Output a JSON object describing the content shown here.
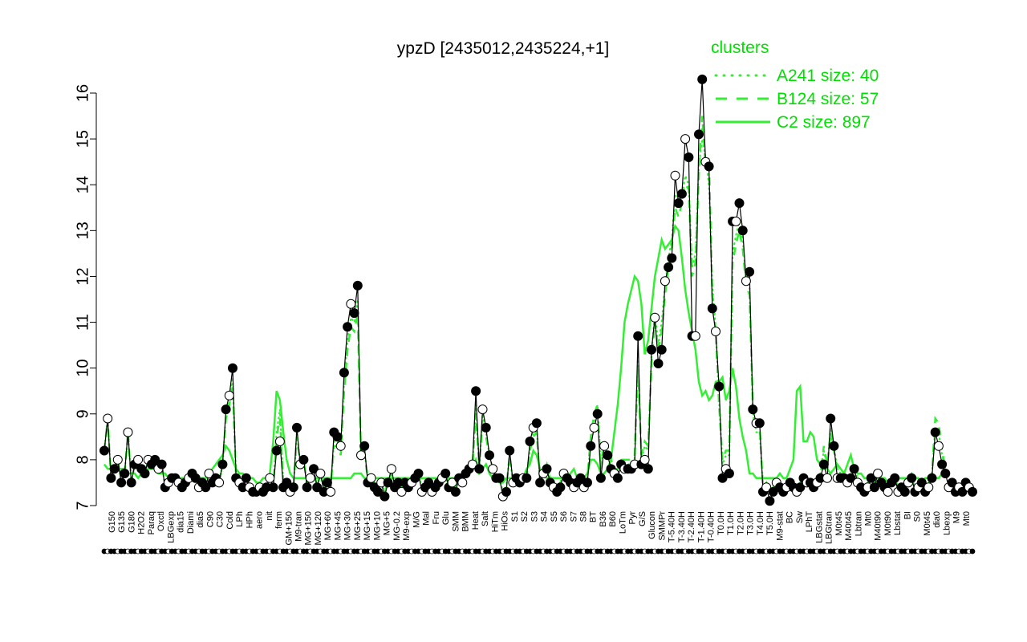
{
  "chart_data": {
    "type": "line",
    "title": "ypzD [2435012,2435224,+1]",
    "xlabel": "",
    "ylabel": "",
    "ylim": [
      7,
      16.3
    ],
    "yticks": [
      7,
      8,
      9,
      10,
      11,
      12,
      13,
      14,
      15,
      16
    ],
    "grid": false,
    "legend_position": "top-right",
    "legend": {
      "title": "clusters",
      "color": "#00e000",
      "entries": [
        {
          "label": "A241 size: 40",
          "style": "dotted"
        },
        {
          "label": "B124 size: 57",
          "style": "dashed"
        },
        {
          "label": "C2 size: 897",
          "style": "solid"
        }
      ]
    },
    "x_tick_labels": [
      "G150",
      "G135",
      "G180",
      "H2O2",
      "Paraq",
      "Oxctl",
      "LBGexp",
      "dia15",
      "Diami",
      "dia5",
      "C90",
      "C30",
      "Cold",
      "LPh",
      "HPh",
      "aero",
      "nit",
      "ferm",
      "GM+150",
      "M9-tran",
      "MG+150",
      "MG+120",
      "MG+60",
      "MG+45",
      "MG+30",
      "MG+25",
      "MG+15",
      "MG+10",
      "MG+5",
      "MG-0.2",
      "M9-exp",
      "M/G",
      "Mal",
      "Fru",
      "Glu",
      "SMM",
      "BMM",
      "Heat",
      "Salt",
      "HiTm",
      "HiOs",
      "S1",
      "S2",
      "S3",
      "S4",
      "S5",
      "S6",
      "S7",
      "S8",
      "BT",
      "B36",
      "B60",
      "LoTm",
      "Pyr",
      "G/S",
      "Glucon",
      "SMMPr",
      "T-5.40H",
      "T-3.40H",
      "T-2.40H",
      "T-1.40H",
      "T-0.40H",
      "T0.0H",
      "T1.0H",
      "T2.0H",
      "T3.0H",
      "T4.0H",
      "T5.0H",
      "M9-stat",
      "BC",
      "Sw",
      "LPhT",
      "LBGstat",
      "LBGtran",
      "M0t45",
      "M40t45",
      "Lbtran",
      "Mt0",
      "M40t90",
      "M0t90",
      "Lbstat",
      "BI",
      "S0",
      "M0t45",
      "dia0",
      "Lbexp",
      "M9",
      "Mt0"
    ],
    "series": [
      {
        "name": "ypzD",
        "values": [
          8.2,
          8.9,
          7.6,
          7.8,
          8.0,
          7.5,
          7.7,
          8.6,
          7.5,
          7.9,
          8.0,
          7.8,
          7.7,
          8.0,
          7.9,
          8.0,
          7.8,
          7.9,
          7.4,
          7.5,
          7.6,
          7.6,
          7.5,
          7.4,
          7.5,
          7.6,
          7.7,
          7.6,
          7.4,
          7.5,
          7.4,
          7.7,
          7.5,
          7.6,
          7.5,
          7.9,
          9.1,
          9.4,
          10.0,
          7.6,
          7.5,
          7.4,
          7.6,
          7.4,
          7.3,
          7.3,
          7.4,
          7.3,
          7.4,
          7.6,
          7.4,
          8.2,
          8.4,
          7.4,
          7.5,
          7.3,
          7.4,
          8.7,
          7.9,
          8.0,
          7.4,
          7.6,
          7.8,
          7.4,
          7.7,
          7.3,
          7.5,
          7.3,
          8.6,
          8.5,
          8.3,
          9.9,
          10.9,
          11.4,
          11.2,
          11.8,
          8.1,
          8.3,
          7.5,
          7.6,
          7.4,
          7.3,
          7.5,
          7.2,
          7.5,
          7.8,
          7.4,
          7.5,
          7.3,
          7.5,
          7.4,
          7.5,
          7.6,
          7.7,
          7.3,
          7.4,
          7.5,
          7.3,
          7.4,
          7.5,
          7.6,
          7.7,
          7.4,
          7.5,
          7.3,
          7.6,
          7.5,
          7.7,
          7.8,
          7.9,
          9.5,
          7.8,
          9.1,
          8.7,
          8.1,
          7.8,
          7.6,
          7.6,
          7.2,
          7.3,
          8.2,
          7.5,
          7.6,
          7.5,
          7.6,
          7.6,
          8.4,
          8.7,
          8.8,
          7.5,
          7.7,
          7.8,
          7.5,
          7.4,
          7.3,
          7.4,
          7.7,
          7.6,
          7.5,
          7.4,
          7.5,
          7.6,
          7.4,
          7.5,
          8.3,
          8.7,
          9.0,
          7.6,
          8.3,
          8.1,
          7.8,
          7.7,
          7.6,
          7.9,
          7.8,
          7.8,
          7.8,
          7.9,
          10.7,
          7.9,
          8.0,
          7.8,
          10.4,
          11.1,
          10.1,
          10.4,
          11.9,
          12.2,
          12.4,
          14.2,
          13.6,
          13.8,
          15.0,
          14.6,
          10.7,
          10.7,
          15.1,
          16.3,
          14.5,
          14.4,
          11.3,
          10.8,
          9.6,
          7.6,
          7.8,
          7.7,
          13.2,
          13.2,
          13.6,
          13.0,
          11.9,
          12.1,
          9.1,
          8.8,
          8.8,
          7.3,
          7.4,
          7.1,
          7.3,
          7.5,
          7.4,
          7.3,
          7.4,
          7.5,
          7.4,
          7.3,
          7.4,
          7.6,
          7.5,
          7.5,
          7.4,
          7.5,
          7.6,
          7.9,
          7.6,
          8.9,
          8.3,
          7.6,
          7.6,
          7.6,
          7.5,
          7.6,
          7.8,
          7.5,
          7.4,
          7.3,
          7.4,
          7.6,
          7.4,
          7.7,
          7.5,
          7.4,
          7.3,
          7.5,
          7.6,
          7.3,
          7.4,
          7.3,
          7.5,
          7.6,
          7.3,
          7.4,
          7.5,
          7.3,
          7.4,
          7.6,
          8.6,
          8.3,
          7.9,
          7.7,
          7.4,
          7.5,
          7.3,
          7.4,
          7.3,
          7.5,
          7.4,
          7.3
        ]
      },
      {
        "name": "A241 size: 40",
        "values": [
          8.2,
          8.9,
          7.6,
          7.8,
          8.0,
          7.5,
          7.7,
          8.6,
          7.5,
          7.9,
          8.0,
          7.8,
          7.7,
          8.0,
          7.9,
          8.0,
          7.8,
          7.9,
          7.4,
          7.5,
          7.6,
          7.6,
          7.5,
          7.4,
          7.5,
          7.6,
          7.7,
          7.6,
          7.4,
          7.5,
          7.4,
          7.7,
          7.5,
          7.6,
          7.5,
          7.9,
          9.0,
          9.3,
          9.8,
          7.6,
          7.5,
          7.4,
          7.6,
          7.4,
          7.3,
          7.3,
          7.4,
          7.3,
          7.4,
          7.6,
          7.4,
          8.6,
          9.1,
          7.5,
          7.5,
          7.3,
          7.4,
          8.6,
          7.9,
          8.0,
          7.5,
          7.6,
          7.8,
          7.4,
          7.7,
          7.4,
          7.5,
          7.4,
          8.4,
          8.4,
          8.2,
          9.7,
          10.6,
          11.1,
          11.0,
          11.5,
          8.0,
          8.2,
          7.6,
          7.6,
          7.5,
          7.4,
          7.5,
          7.3,
          7.5,
          7.7,
          7.4,
          7.5,
          7.4,
          7.5,
          7.4,
          7.5,
          7.6,
          7.7,
          7.4,
          7.4,
          7.5,
          7.4,
          7.4,
          7.5,
          7.6,
          7.7,
          7.4,
          7.5,
          7.4,
          7.6,
          7.5,
          7.7,
          7.8,
          7.9,
          9.2,
          7.8,
          9.0,
          8.6,
          8.1,
          7.8,
          7.6,
          7.6,
          7.3,
          7.4,
          8.1,
          7.5,
          7.6,
          7.5,
          7.6,
          7.6,
          8.3,
          8.6,
          8.7,
          7.5,
          7.7,
          7.9,
          7.6,
          7.5,
          7.4,
          7.5,
          7.7,
          7.6,
          7.6,
          7.5,
          7.5,
          7.6,
          7.5,
          7.6,
          8.4,
          8.8,
          9.2,
          7.8,
          8.3,
          8.2,
          7.9,
          7.8,
          7.7,
          8.0,
          7.9,
          7.9,
          7.9,
          8.0,
          10.3,
          8.0,
          8.3,
          8.2,
          10.3,
          11.2,
          10.5,
          11.0,
          11.8,
          12.4,
          12.8,
          13.8,
          13.6,
          13.7,
          14.2,
          14.0,
          12.2,
          12.5,
          14.4,
          15.0,
          14.6,
          14.0,
          11.8,
          10.9,
          9.3,
          7.9,
          8.1,
          8.1,
          12.5,
          12.9,
          13.2,
          12.8,
          11.9,
          11.8,
          9.0,
          8.6,
          8.6,
          7.4,
          7.5,
          7.3,
          7.4,
          7.5,
          7.4,
          7.4,
          7.5,
          7.5,
          7.4,
          7.4,
          7.5,
          7.6,
          7.5,
          7.5,
          7.4,
          7.6,
          7.7,
          8.2,
          7.8,
          8.7,
          8.3,
          7.8,
          7.7,
          7.7,
          7.6,
          7.7,
          7.8,
          7.6,
          7.5,
          7.4,
          7.5,
          7.6,
          7.5,
          7.7,
          7.5,
          7.5,
          7.4,
          7.5,
          7.6,
          7.4,
          7.4,
          7.4,
          7.5,
          7.6,
          7.4,
          7.4,
          7.5,
          7.4,
          7.5,
          7.7,
          8.7,
          8.6,
          8.1,
          7.8,
          7.5,
          7.5,
          7.4,
          7.4,
          7.4,
          7.5,
          7.4,
          7.4
        ]
      },
      {
        "name": "B124 size: 57",
        "values": [
          8.2,
          8.9,
          7.6,
          7.8,
          8.0,
          7.5,
          7.7,
          8.6,
          7.5,
          7.9,
          8.0,
          7.8,
          7.7,
          8.0,
          7.9,
          8.0,
          7.8,
          7.9,
          7.4,
          7.5,
          7.6,
          7.6,
          7.5,
          7.4,
          7.5,
          7.6,
          7.7,
          7.6,
          7.4,
          7.5,
          7.4,
          7.7,
          7.5,
          7.6,
          7.5,
          7.9,
          8.9,
          9.2,
          9.6,
          7.6,
          7.5,
          7.4,
          7.6,
          7.4,
          7.3,
          7.3,
          7.4,
          7.3,
          7.4,
          7.6,
          7.4,
          8.5,
          8.9,
          7.5,
          7.5,
          7.3,
          7.4,
          8.5,
          7.9,
          8.0,
          7.5,
          7.6,
          7.8,
          7.4,
          7.7,
          7.4,
          7.5,
          7.4,
          8.3,
          8.3,
          8.1,
          9.5,
          10.4,
          10.9,
          10.8,
          11.2,
          8.0,
          8.1,
          7.6,
          7.6,
          7.5,
          7.4,
          7.5,
          7.3,
          7.5,
          7.7,
          7.4,
          7.5,
          7.4,
          7.5,
          7.4,
          7.5,
          7.6,
          7.7,
          7.4,
          7.4,
          7.5,
          7.4,
          7.4,
          7.5,
          7.6,
          7.7,
          7.4,
          7.5,
          7.4,
          7.6,
          7.5,
          7.7,
          7.8,
          7.9,
          9.0,
          7.8,
          8.9,
          8.5,
          8.1,
          7.8,
          7.6,
          7.6,
          7.3,
          7.4,
          8.1,
          7.5,
          7.6,
          7.5,
          7.6,
          7.6,
          8.2,
          8.5,
          8.6,
          7.5,
          7.7,
          7.9,
          7.6,
          7.5,
          7.4,
          7.5,
          7.7,
          7.6,
          7.6,
          7.5,
          7.5,
          7.6,
          7.5,
          7.6,
          8.5,
          9.0,
          9.2,
          7.8,
          8.4,
          8.3,
          8.0,
          7.8,
          7.8,
          8.0,
          8.0,
          8.0,
          8.0,
          8.1,
          10.0,
          8.1,
          8.4,
          8.3,
          10.1,
          11.0,
          10.4,
          10.8,
          11.6,
          12.2,
          12.6,
          13.5,
          13.3,
          13.6,
          14.0,
          13.9,
          12.0,
          12.3,
          14.2,
          15.5,
          14.4,
          14.6,
          11.6,
          10.8,
          9.2,
          8.0,
          8.2,
          8.2,
          12.3,
          12.7,
          13.0,
          12.6,
          11.8,
          11.6,
          9.2,
          8.7,
          8.7,
          7.4,
          7.5,
          7.3,
          7.4,
          7.5,
          7.4,
          7.4,
          7.5,
          7.5,
          7.4,
          7.4,
          7.5,
          7.6,
          7.5,
          7.5,
          7.4,
          7.6,
          7.7,
          8.3,
          7.9,
          8.6,
          8.2,
          7.8,
          7.7,
          7.7,
          7.6,
          7.7,
          7.8,
          7.6,
          7.5,
          7.4,
          7.5,
          7.6,
          7.5,
          7.7,
          7.5,
          7.5,
          7.4,
          7.5,
          7.6,
          7.4,
          7.4,
          7.4,
          7.5,
          7.6,
          7.4,
          7.4,
          7.5,
          7.4,
          7.5,
          7.7,
          8.9,
          8.8,
          8.2,
          7.8,
          7.5,
          7.5,
          7.4,
          7.4,
          7.4,
          7.5,
          7.4,
          7.4
        ]
      },
      {
        "name": "C2 size: 897",
        "values": [
          7.9,
          7.8,
          7.8,
          7.8,
          7.8,
          7.8,
          7.8,
          7.7,
          7.7,
          7.7,
          7.6,
          7.7,
          7.7,
          7.8,
          7.8,
          7.8,
          7.7,
          7.7,
          7.7,
          7.6,
          7.6,
          7.6,
          7.6,
          7.6,
          7.6,
          7.6,
          7.7,
          7.6,
          7.6,
          7.6,
          7.6,
          7.7,
          7.8,
          7.9,
          8.0,
          8.1,
          8.3,
          8.2,
          8.0,
          7.8,
          7.7,
          7.7,
          7.6,
          7.6,
          7.6,
          7.5,
          7.5,
          7.6,
          7.6,
          7.7,
          8.4,
          9.5,
          9.3,
          8.6,
          8.0,
          7.7,
          7.6,
          7.6,
          7.6,
          7.6,
          7.6,
          7.6,
          7.6,
          7.6,
          7.6,
          7.6,
          7.6,
          7.6,
          7.6,
          7.6,
          7.6,
          7.6,
          7.6,
          7.6,
          7.7,
          7.7,
          7.7,
          7.6,
          7.6,
          7.6,
          7.6,
          7.6,
          7.6,
          7.6,
          7.6,
          7.6,
          7.6,
          7.6,
          7.6,
          7.6,
          7.6,
          7.6,
          7.6,
          7.6,
          7.6,
          7.6,
          7.6,
          7.6,
          7.6,
          7.6,
          7.6,
          7.6,
          7.6,
          7.6,
          7.6,
          7.6,
          7.6,
          7.7,
          7.7,
          7.8,
          8.0,
          7.7,
          7.8,
          7.9,
          7.7,
          7.6,
          7.6,
          7.5,
          7.5,
          7.6,
          7.6,
          7.6,
          7.6,
          7.6,
          7.6,
          7.8,
          7.9,
          8.2,
          8.1,
          7.8,
          7.7,
          7.6,
          7.6,
          7.6,
          7.6,
          7.6,
          7.6,
          7.6,
          7.7,
          7.8,
          7.6,
          7.6,
          7.6,
          7.7,
          8.0,
          8.0,
          7.9,
          7.7,
          7.7,
          7.8,
          8.0,
          8.6,
          9.2,
          10.0,
          11.0,
          11.4,
          11.7,
          12.0,
          11.9,
          11.4,
          10.3,
          10.6,
          11.3,
          12.0,
          12.4,
          12.8,
          12.6,
          12.7,
          12.8,
          13.1,
          13.0,
          12.4,
          11.7,
          11.2,
          10.8,
          10.4,
          9.7,
          9.4,
          9.5,
          9.3,
          9.4,
          9.7,
          9.7,
          9.8,
          9.3,
          9.5,
          10.0,
          9.6,
          8.9,
          8.5,
          8.2,
          7.7,
          7.7,
          7.6,
          7.6,
          7.6,
          7.6,
          7.6,
          7.6,
          7.6,
          7.7,
          7.6,
          7.6,
          7.8,
          8.0,
          9.5,
          9.6,
          8.4,
          8.4,
          8.6,
          8.5,
          8.0,
          7.9,
          7.8,
          7.8,
          7.7,
          7.8,
          7.9,
          7.8,
          7.7,
          7.9,
          8.1,
          7.8,
          7.7,
          7.7,
          7.6,
          7.6,
          7.6,
          7.6,
          7.6,
          7.6,
          7.6,
          7.5,
          7.6,
          7.6,
          7.6,
          7.6,
          7.6,
          7.6,
          7.7,
          7.6,
          7.6,
          7.5,
          7.6,
          7.6,
          7.7,
          7.6,
          7.6,
          7.7,
          7.7
        ]
      }
    ]
  }
}
